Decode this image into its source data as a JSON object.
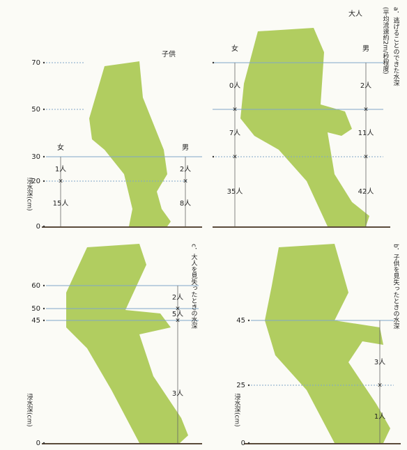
{
  "panel_a": {
    "title": "a．逃げることのできた水深",
    "note": "(平均流速約2m/秒程度)",
    "y_axis_label": "浸水深(cm)",
    "child": {
      "label": "子供",
      "female": "女",
      "male": "男",
      "ticks": [
        "70",
        "50",
        "30",
        "20",
        "0"
      ],
      "female_counts": [
        "1人",
        "15人"
      ],
      "male_counts": [
        "2人",
        "8人"
      ]
    },
    "adult": {
      "label": "大人",
      "female": "女",
      "male": "男",
      "female_counts": [
        "0人",
        "7人",
        "35人"
      ],
      "male_counts": [
        "2人",
        "11人",
        "42人"
      ]
    }
  },
  "panel_c": {
    "title": "c．大人を見失ったときの水深",
    "y_axis_label": "浸水深(cm)",
    "ticks": [
      "60",
      "50",
      "45",
      "0"
    ],
    "counts": [
      "2人",
      "5人",
      "3人"
    ]
  },
  "panel_b": {
    "title": "b．子供を見失ったときの水深",
    "y_axis_label": "浸水深(cm)",
    "ticks": [
      "45",
      "25",
      "0"
    ],
    "counts": [
      "3人",
      "1人"
    ]
  }
}
